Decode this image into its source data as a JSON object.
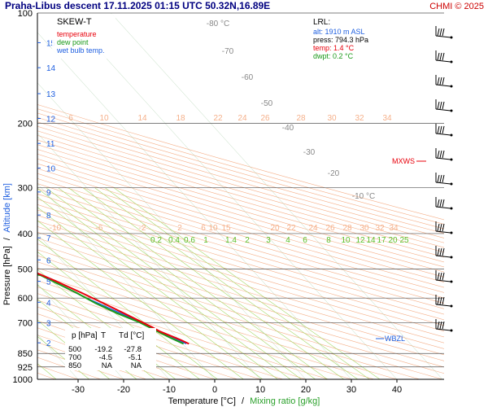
{
  "header": {
    "title": "Praha-Libus   descent   17.11.2025 01:15 UTC   50.32N,16.89E",
    "copyright": "CHMI © 2025"
  },
  "legend": {
    "title": "SKEW-T",
    "items": [
      {
        "label": "temperature",
        "color": "#e8000b"
      },
      {
        "label": "dew point",
        "color": "#1a9a1a"
      },
      {
        "label": "wet bulb temp.",
        "color": "#2060e0"
      }
    ]
  },
  "lrl_box": {
    "title": "LRL:",
    "alt": "alt: 1910 m ASL",
    "press": "press: 794.3 hPa",
    "temp": "temp: 1.4 °C",
    "dwpt": "dwpt: 0.2 °C"
  },
  "data_table": {
    "headers": [
      "p [hPa]",
      "T",
      "Td [°C]"
    ],
    "rows": [
      [
        "500",
        "-19.2",
        "-27.8"
      ],
      [
        "700",
        "-4.5",
        "-5.1"
      ],
      [
        "850",
        "NA",
        "NA"
      ]
    ]
  },
  "axes": {
    "ylabel_left": "Pressure [hPa]",
    "ylabel_sep": "/",
    "ylabel_right": "Altitude [km]",
    "xlabel_temp": "Temperature [°C]",
    "xlabel_sep": "/",
    "xlabel_mix": "Mixing ratio [g/kg]"
  },
  "markers": {
    "mxws": "MXWS",
    "wbzl": "WBZL"
  },
  "colors": {
    "temperature": "#e8000b",
    "dewpoint": "#1a9a1a",
    "wetbulb": "#2060e0",
    "title": "#000080",
    "copyright": "#cc0000",
    "adiabat": "#f5b08a",
    "mixing": "#a8d96a",
    "isotherm_label": "#888888"
  },
  "chart_data": {
    "type": "skew-t",
    "x_ticks": [
      -30,
      -20,
      -10,
      0,
      10,
      20,
      30,
      40
    ],
    "xlim": [
      -35,
      45
    ],
    "pressure_ticks": [
      100,
      200,
      300,
      400,
      500,
      600,
      700,
      850,
      925,
      1000
    ],
    "ylim_hPa": [
      1000,
      100
    ],
    "altitude_ticks_km": [
      2,
      3,
      4,
      5,
      6,
      7,
      8,
      9,
      10,
      11,
      12,
      13,
      14,
      15
    ],
    "isotherm_labels": [
      "-80 °C",
      "-70",
      "-60",
      "-50",
      "-40",
      "-30",
      "-20",
      "-10 °C"
    ],
    "mixing_ratio_labels": [
      "0.2",
      "0.4",
      "0.6",
      "1",
      "1.4",
      "2",
      "3",
      "4",
      "6",
      "8",
      "10",
      "12",
      "14",
      "17",
      "20",
      "25"
    ],
    "adiabat_labels_top": [
      "6",
      "10",
      "14",
      "18",
      "22",
      "24",
      "26",
      "28",
      "30",
      "32",
      "34"
    ],
    "adiabat_labels_mid": [
      "-10",
      "-6",
      "-2",
      "2",
      "6",
      "10",
      "15",
      "20",
      "22",
      "24",
      "26",
      "28",
      "30",
      "32",
      "34"
    ],
    "temperature": [
      {
        "p": 800,
        "t": 1.4
      },
      {
        "p": 780,
        "t": 0.3
      },
      {
        "p": 740,
        "t": -2.5
      },
      {
        "p": 720,
        "t": -3.4
      },
      {
        "p": 700,
        "t": -4.5
      },
      {
        "p": 660,
        "t": -6.8
      },
      {
        "p": 620,
        "t": -9.3
      },
      {
        "p": 580,
        "t": -12.1
      },
      {
        "p": 540,
        "t": -15.3
      },
      {
        "p": 500,
        "t": -19.2
      },
      {
        "p": 460,
        "t": -23.5
      },
      {
        "p": 420,
        "t": -28.0
      },
      {
        "p": 380,
        "t": -32.5
      },
      {
        "p": 350,
        "t": -36.5
      },
      {
        "p": 320,
        "t": -40.7
      },
      {
        "p": 290,
        "t": -45.0
      },
      {
        "p": 270,
        "t": -48.2
      },
      {
        "p": 250,
        "t": -51.6
      },
      {
        "p": 230,
        "t": -54.8
      },
      {
        "p": 215,
        "t": -57.2
      },
      {
        "p": 205,
        "t": -57.0
      },
      {
        "p": 195,
        "t": -56.6
      },
      {
        "p": 180,
        "t": -57.5
      },
      {
        "p": 160,
        "t": -58.8
      },
      {
        "p": 140,
        "t": -58.0
      },
      {
        "p": 125,
        "t": -59.5
      },
      {
        "p": 112,
        "t": -62.5
      },
      {
        "p": 100,
        "t": -65.0
      }
    ],
    "dewpoint": [
      {
        "p": 800,
        "t": 0.2
      },
      {
        "p": 770,
        "t": -1.5
      },
      {
        "p": 740,
        "t": -3.0
      },
      {
        "p": 700,
        "t": -5.1
      },
      {
        "p": 660,
        "t": -8.3
      },
      {
        "p": 620,
        "t": -11.0
      },
      {
        "p": 580,
        "t": -13.2
      },
      {
        "p": 540,
        "t": -16.0
      },
      {
        "p": 520,
        "t": -17.5
      },
      {
        "p": 510,
        "t": -21.0
      },
      {
        "p": 500,
        "t": -27.8
      },
      {
        "p": 495,
        "t": -24.5
      },
      {
        "p": 485,
        "t": -23.2
      },
      {
        "p": 470,
        "t": -22.5
      },
      {
        "p": 455,
        "t": -26.5
      },
      {
        "p": 440,
        "t": -27.5
      },
      {
        "p": 420,
        "t": -30.5
      },
      {
        "p": 400,
        "t": -35.5
      },
      {
        "p": 385,
        "t": -40.0
      },
      {
        "p": 360,
        "t": -44.0
      },
      {
        "p": 340,
        "t": -50.0
      },
      {
        "p": 320,
        "t": -53.5
      },
      {
        "p": 300,
        "t": -58.5
      },
      {
        "p": 280,
        "t": -60.5
      },
      {
        "p": 260,
        "t": -61.5
      },
      {
        "p": 245,
        "t": -64.0
      },
      {
        "p": 230,
        "t": -66.5
      },
      {
        "p": 215,
        "t": -68.5
      },
      {
        "p": 200,
        "t": -70.0
      },
      {
        "p": 185,
        "t": -70.5
      },
      {
        "p": 165,
        "t": -75.5
      },
      {
        "p": 145,
        "t": -79.5
      },
      {
        "p": 125,
        "t": -83.0
      },
      {
        "p": 110,
        "t": -85.0
      },
      {
        "p": 100,
        "t": -86.5
      }
    ],
    "wetbulb": [
      {
        "p": 800,
        "t": 0.8
      },
      {
        "p": 700,
        "t": -4.8
      },
      {
        "p": 600,
        "t": -12.0
      },
      {
        "p": 520,
        "t": -17.5
      },
      {
        "p": 480,
        "t": -22.0
      },
      {
        "p": 440,
        "t": -26.0
      },
      {
        "p": 400,
        "t": -31.5
      },
      {
        "p": 360,
        "t": -37.0
      }
    ]
  }
}
